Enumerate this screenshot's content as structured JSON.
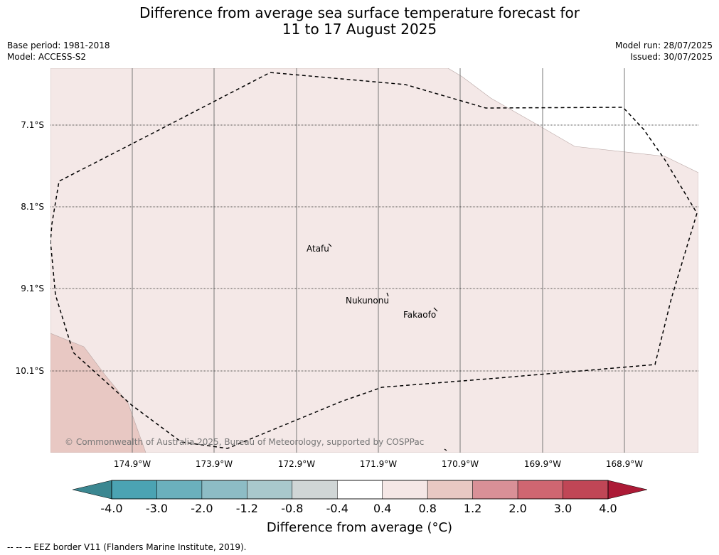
{
  "header": {
    "title_line1": "Difference from average sea surface temperature forecast for",
    "title_line2": "11 to 17 August 2025",
    "base_period": "Base period: 1981-2018",
    "model": "Model: ACCESS-S2",
    "model_run": "Model run: 28/07/2025",
    "issued": "Issued: 30/07/2025"
  },
  "map": {
    "latitude_labels": [
      "7.1°S",
      "8.1°S",
      "9.1°S",
      "10.1°S"
    ],
    "longitude_labels": [
      "174.9°W",
      "173.9°W",
      "172.9°W",
      "171.9°W",
      "170.9°W",
      "169.9°W",
      "168.9°W"
    ],
    "places": [
      "Atafu",
      "Nukunonu",
      "Fakaofo"
    ],
    "copyright": "© Commonwealth of Australia 2025, Bureau of Meteorology, supported by COSPPac",
    "region_color_main": "#f4e8e7",
    "region_color_warm": "#e8c8c3",
    "eez_line_style": "dashed"
  },
  "colorbar": {
    "tick_labels": [
      "-4.0",
      "-3.0",
      "-2.0",
      "-1.2",
      "-0.8",
      "-0.4",
      "0.4",
      "0.8",
      "1.2",
      "2.0",
      "3.0",
      "4.0"
    ],
    "colors": [
      "#4ba3b3",
      "#6bb0bd",
      "#8dbcc5",
      "#a9c8cc",
      "#d0d6d6",
      "#ffffff",
      "#f5e7e6",
      "#e8c8c3",
      "#d99097",
      "#cf6671",
      "#c04656"
    ],
    "under_color": "#3b8791",
    "over_color": "#ac1a36",
    "title": "Difference from average (°C)"
  },
  "footer": {
    "legend_text": "--  --  -- EEZ border V11 (Flanders Marine Institute, 2019)."
  }
}
